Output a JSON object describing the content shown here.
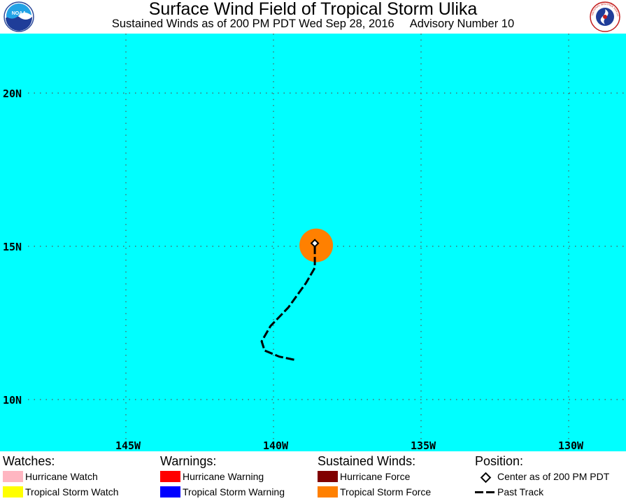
{
  "header": {
    "title": "Surface Wind Field of Tropical Storm Ulika",
    "subtitle_left": "Sustained Winds as of 200 PM PDT Wed Sep 28, 2016",
    "subtitle_right": "Advisory Number 10",
    "left_logo": "NOAA",
    "right_logo": "NATIONAL WEATHER SERVICE"
  },
  "map": {
    "ocean_color": "#00FFFF",
    "lat_labels": [
      "20N",
      "15N",
      "10N"
    ],
    "lon_labels": [
      "145W",
      "140W",
      "135W",
      "130W"
    ],
    "lat_values": [
      20,
      15,
      10
    ],
    "lon_values": [
      -145,
      -140,
      -135,
      -130
    ],
    "storm_center": {
      "lat": 15.1,
      "lon": -138.6
    },
    "tropical_storm_force_color": "#FF8000",
    "past_track": [
      {
        "lat": 11.3,
        "lon": -139.3
      },
      {
        "lat": 11.4,
        "lon": -139.8
      },
      {
        "lat": 11.6,
        "lon": -140.3
      },
      {
        "lat": 11.9,
        "lon": -140.4
      },
      {
        "lat": 12.4,
        "lon": -140.1
      },
      {
        "lat": 13.0,
        "lon": -139.5
      },
      {
        "lat": 13.8,
        "lon": -138.9
      },
      {
        "lat": 14.3,
        "lon": -138.6
      },
      {
        "lat": 14.7,
        "lon": -138.6
      },
      {
        "lat": 15.1,
        "lon": -138.6
      }
    ]
  },
  "legend": {
    "watches": {
      "heading": "Watches:",
      "items": [
        {
          "label": "Hurricane Watch",
          "color": "#FFB6C1"
        },
        {
          "label": "Tropical Storm Watch",
          "color": "#FFFF00"
        }
      ]
    },
    "warnings": {
      "heading": "Warnings:",
      "items": [
        {
          "label": "Hurricane Warning",
          "color": "#FF0000"
        },
        {
          "label": "Tropical Storm Warning",
          "color": "#0000FF"
        }
      ]
    },
    "winds": {
      "heading": "Sustained Winds:",
      "items": [
        {
          "label": "Hurricane Force",
          "color": "#800000"
        },
        {
          "label": "Tropical Storm Force",
          "color": "#FF8000"
        }
      ]
    },
    "position": {
      "heading": "Position:",
      "center_label": "Center as of 200 PM PDT",
      "track_label": "Past Track"
    }
  }
}
